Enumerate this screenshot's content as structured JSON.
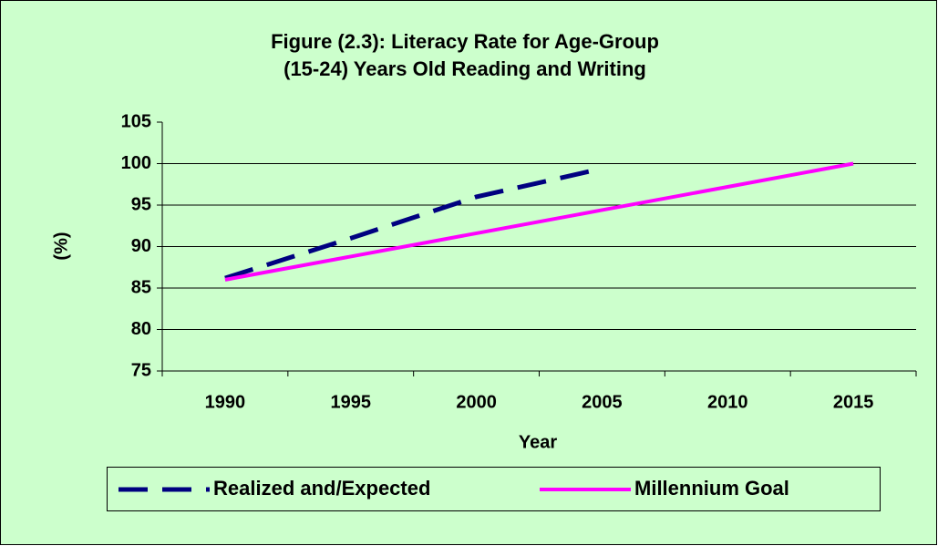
{
  "chart_data": {
    "type": "line",
    "title": [
      "Figure (2.3): Literacy Rate for Age-Group",
      "(15-24) Years Old Reading and Writing"
    ],
    "xlabel": "Year",
    "ylabel": "(%)",
    "categories": [
      "1990",
      "1995",
      "2000",
      "2005",
      "2010",
      "2015"
    ],
    "series": [
      {
        "name": "Realized and/Expected",
        "color": "#000080",
        "dashed": true,
        "values": [
          86.2,
          91,
          96,
          99.4,
          null,
          null
        ]
      },
      {
        "name": "Millennium Goal",
        "color": "#ff00ff",
        "dashed": false,
        "values": [
          86,
          88.8,
          91.6,
          94.4,
          97.2,
          100
        ]
      }
    ],
    "ylim": [
      75,
      105
    ],
    "yticks": [
      75,
      80,
      85,
      90,
      95,
      100,
      105
    ],
    "grid": true,
    "legend": "bottom"
  }
}
